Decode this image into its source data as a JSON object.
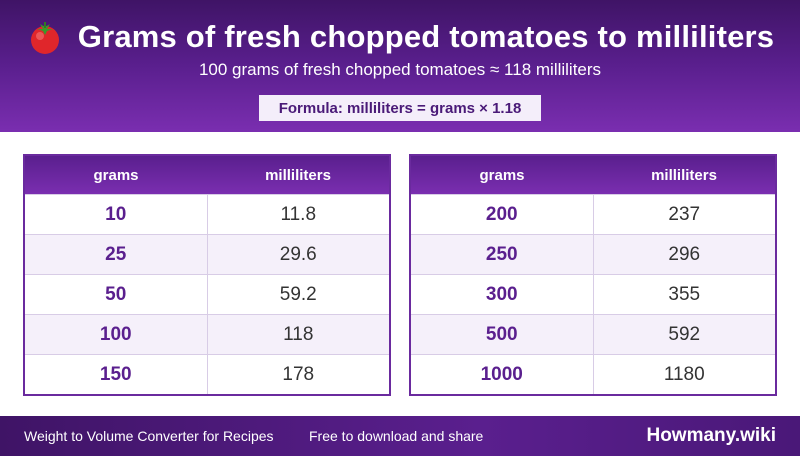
{
  "header": {
    "icon": "tomato-icon",
    "title": "Grams of fresh chopped tomatoes to milliliters",
    "subtitle": "100 grams of fresh chopped tomatoes ≈ 118 milliliters",
    "formula": "Formula: milliliters = grams × 1.18"
  },
  "tables": {
    "left": {
      "col_grams": "grams",
      "col_ml": "milliliters",
      "rows": [
        {
          "grams": "10",
          "ml": "11.8"
        },
        {
          "grams": "25",
          "ml": "29.6"
        },
        {
          "grams": "50",
          "ml": "59.2"
        },
        {
          "grams": "100",
          "ml": "118"
        },
        {
          "grams": "150",
          "ml": "178"
        }
      ]
    },
    "right": {
      "col_grams": "grams",
      "col_ml": "milliliters",
      "rows": [
        {
          "grams": "200",
          "ml": "237"
        },
        {
          "grams": "250",
          "ml": "296"
        },
        {
          "grams": "300",
          "ml": "355"
        },
        {
          "grams": "500",
          "ml": "592"
        },
        {
          "grams": "1000",
          "ml": "1180"
        }
      ]
    }
  },
  "footer": {
    "left": "Weight to Volume Converter for Recipes",
    "middle": "Free to download and share",
    "brand": "Howmany.wiki"
  },
  "colors": {
    "primary": "#5a1f8e",
    "accent": "#7a2eb0",
    "row_alt": "#f5f0fa"
  }
}
